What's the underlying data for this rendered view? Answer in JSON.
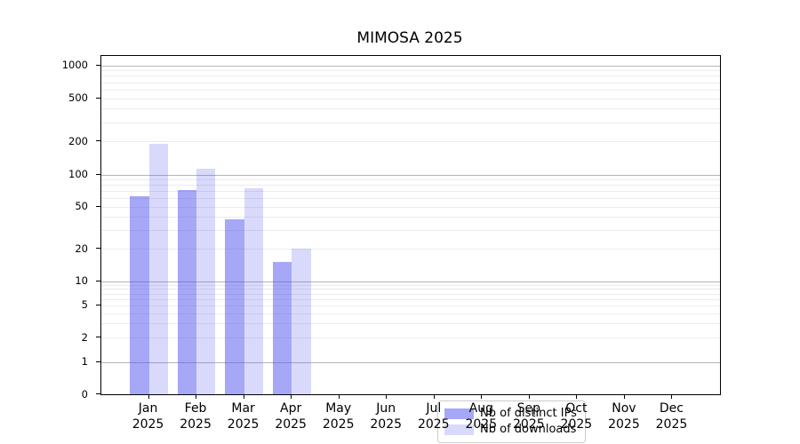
{
  "title": "MIMOSA 2025",
  "chart_data": {
    "type": "bar",
    "title": "MIMOSA 2025",
    "categories": [
      "Jan",
      "Feb",
      "Mar",
      "Apr",
      "May",
      "Jun",
      "Jul",
      "Aug",
      "Sep",
      "Oct",
      "Nov",
      "Dec"
    ],
    "year_label": "2025",
    "series": [
      {
        "name": "Nb of distinct IPs",
        "color": "rgba(80,80,240,0.5)",
        "values": [
          62,
          71,
          38,
          15,
          0,
          0,
          0,
          0,
          0,
          0,
          0,
          0
        ]
      },
      {
        "name": "Nb of downloads",
        "color": "rgba(80,80,240,0.22)",
        "values": [
          190,
          112,
          75,
          20,
          0,
          0,
          0,
          0,
          0,
          0,
          0,
          0
        ]
      }
    ],
    "yscale": "symlog",
    "yticks": [
      0,
      1,
      2,
      5,
      10,
      20,
      50,
      100,
      200,
      500,
      1000
    ],
    "ylim": [
      0,
      1000
    ],
    "grid": true,
    "grid_major_color": "#b6b6b6",
    "grid_minor_color": "#ebebeb",
    "legend_position": "inside-bottom-center"
  }
}
